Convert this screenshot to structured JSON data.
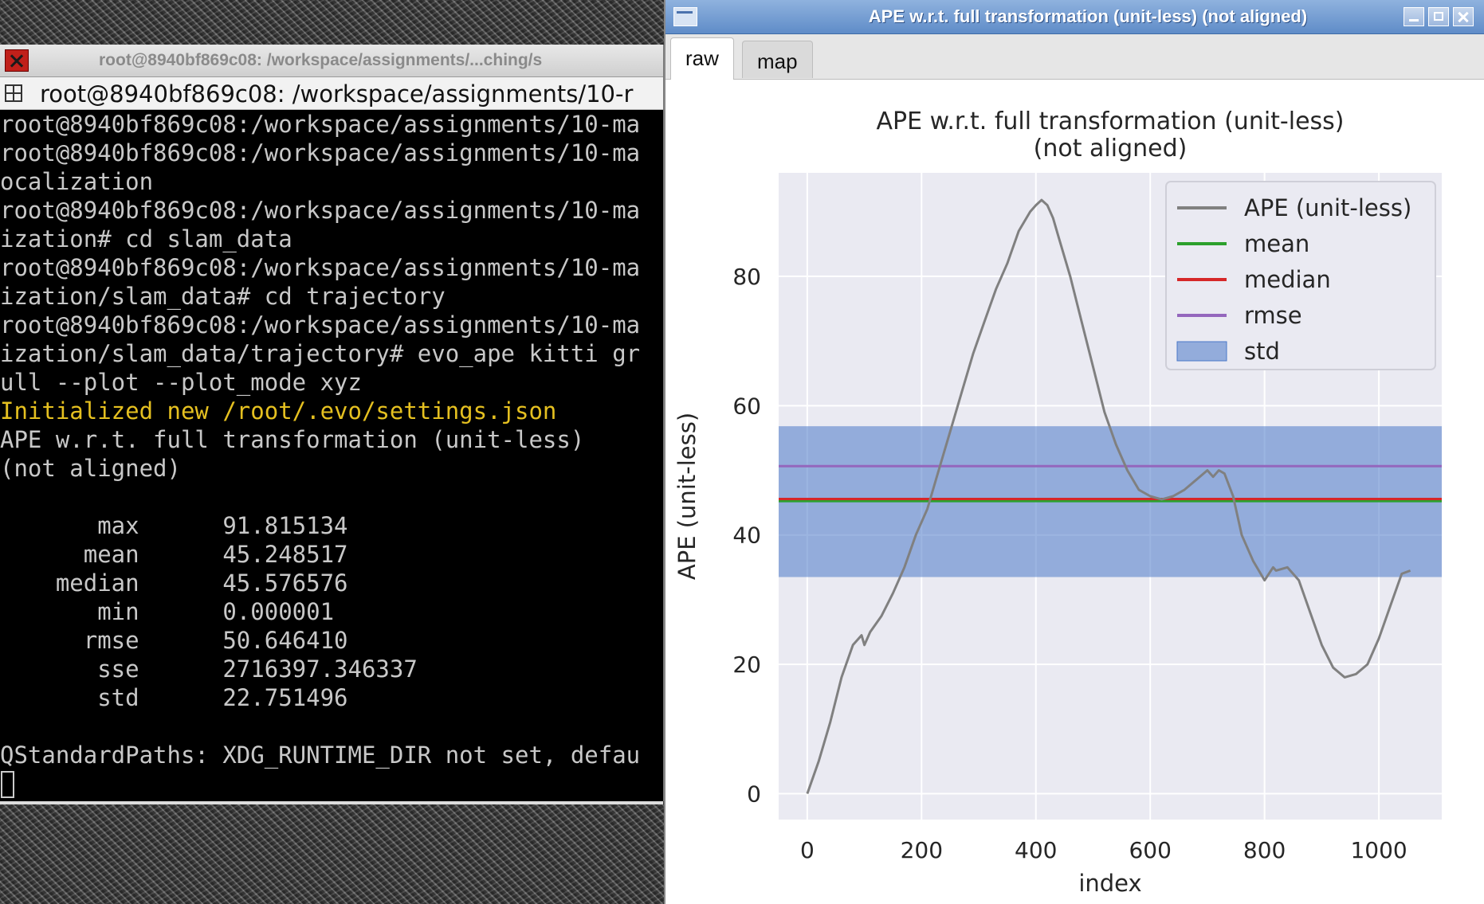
{
  "terminal": {
    "title": "root@8940bf869c08: /workspace/assignments/...ching/s",
    "tab_label": "root@8940bf869c08: /workspace/assignments/10-r",
    "lines": [
      "root@8940bf869c08:/workspace/assignments/10-ma",
      "root@8940bf869c08:/workspace/assignments/10-ma",
      "ocalization",
      "root@8940bf869c08:/workspace/assignments/10-ma",
      "ization# cd slam_data",
      "root@8940bf869c08:/workspace/assignments/10-ma",
      "ization/slam_data# cd trajectory",
      "root@8940bf869c08:/workspace/assignments/10-ma",
      "ization/slam_data/trajectory# evo_ape kitti gr",
      "ull --plot --plot_mode xyz",
      "Initialized new /root/.evo/settings.json",
      "APE w.r.t. full transformation (unit-less)",
      "(not aligned)",
      "",
      "       max      91.815134",
      "      mean      45.248517",
      "    median      45.576576",
      "       min      0.000001",
      "      rmse      50.646410",
      "       sse      2716397.346337",
      "       std      22.751496",
      "",
      "QStandardPaths: XDG_RUNTIME_DIR not set, defau"
    ],
    "highlight_line_index": 10
  },
  "plot_window": {
    "title": "APE w.r.t. full transformation (unit-less) (not aligned)",
    "tabs": [
      {
        "label": "raw",
        "active": true
      },
      {
        "label": "map",
        "active": false
      }
    ]
  },
  "chart_data": {
    "type": "line",
    "title": "APE w.r.t. full transformation (unit-less)",
    "subtitle": "(not aligned)",
    "xlabel": "index",
    "ylabel": "APE (unit-less)",
    "xlim": [
      -50,
      1110
    ],
    "ylim": [
      -4,
      96
    ],
    "xticks": [
      0,
      200,
      400,
      600,
      800,
      1000
    ],
    "yticks": [
      0,
      20,
      40,
      60,
      80
    ],
    "grid": true,
    "legend_position": "top-right",
    "series": [
      {
        "name": "APE (unit-less)",
        "color": "#808080",
        "x": [
          0,
          20,
          40,
          60,
          80,
          95,
          100,
          110,
          130,
          150,
          170,
          190,
          210,
          230,
          250,
          270,
          290,
          310,
          330,
          350,
          370,
          390,
          400,
          410,
          420,
          430,
          440,
          460,
          480,
          500,
          520,
          540,
          560,
          580,
          600,
          620,
          640,
          660,
          680,
          700,
          710,
          720,
          730,
          745,
          760,
          780,
          800,
          815,
          820,
          840,
          860,
          880,
          900,
          920,
          940,
          960,
          980,
          1000,
          1020,
          1040,
          1055
        ],
        "y": [
          0,
          5,
          11,
          18,
          23,
          24.5,
          23,
          25,
          27.5,
          31,
          35,
          40,
          44,
          50,
          56,
          62,
          68,
          73,
          78,
          82,
          87,
          90,
          91,
          91.8,
          91,
          89,
          86,
          80,
          73,
          66,
          59,
          54,
          50,
          47,
          46,
          45.5,
          46,
          47,
          48.5,
          50,
          49,
          50,
          49.5,
          46,
          40,
          36,
          33,
          35,
          34.5,
          35,
          33,
          28,
          23,
          19.5,
          18,
          18.5,
          20,
          24,
          29,
          34,
          34.5
        ]
      },
      {
        "name": "mean",
        "color": "#2ca02c",
        "value": 45.248517
      },
      {
        "name": "median",
        "color": "#d62728",
        "value": 45.576576
      },
      {
        "name": "rmse",
        "color": "#9467bd",
        "value": 50.64641
      },
      {
        "name": "std",
        "color": "#1f4fbf",
        "band": [
          33.5,
          56.82
        ]
      }
    ]
  }
}
